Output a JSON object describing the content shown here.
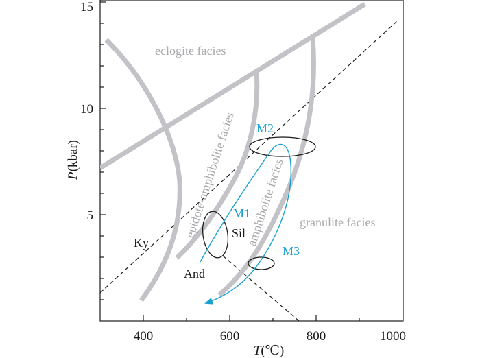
{
  "axes": {
    "x_title_italic": "T",
    "x_title_unit": "(℃)",
    "y_title_italic": "P",
    "y_title_unit": "(kbar)",
    "x_ticks": [
      "400",
      "600",
      "800",
      "1000"
    ],
    "y_ticks": [
      "5",
      "10",
      "15"
    ],
    "x_range": [
      300,
      1000
    ],
    "y_range": [
      0,
      15
    ]
  },
  "facies": {
    "eclogite": "eclogite facies",
    "epidote_amphibolite": "epidote-amphibolite facies",
    "amphibolite": "amphibolite facies",
    "granulite": "granulite facies"
  },
  "stages": {
    "m1": "M1",
    "m2": "M2",
    "m3": "M3"
  },
  "minerals": {
    "ky": "Ky",
    "sil": "Sil",
    "and": "And"
  },
  "colors": {
    "facies_boundary": "#c3c3c7",
    "facies_text": "#a9a9ad",
    "pt_path": "#1aa0d0",
    "ink": "#1a1a1a"
  }
}
